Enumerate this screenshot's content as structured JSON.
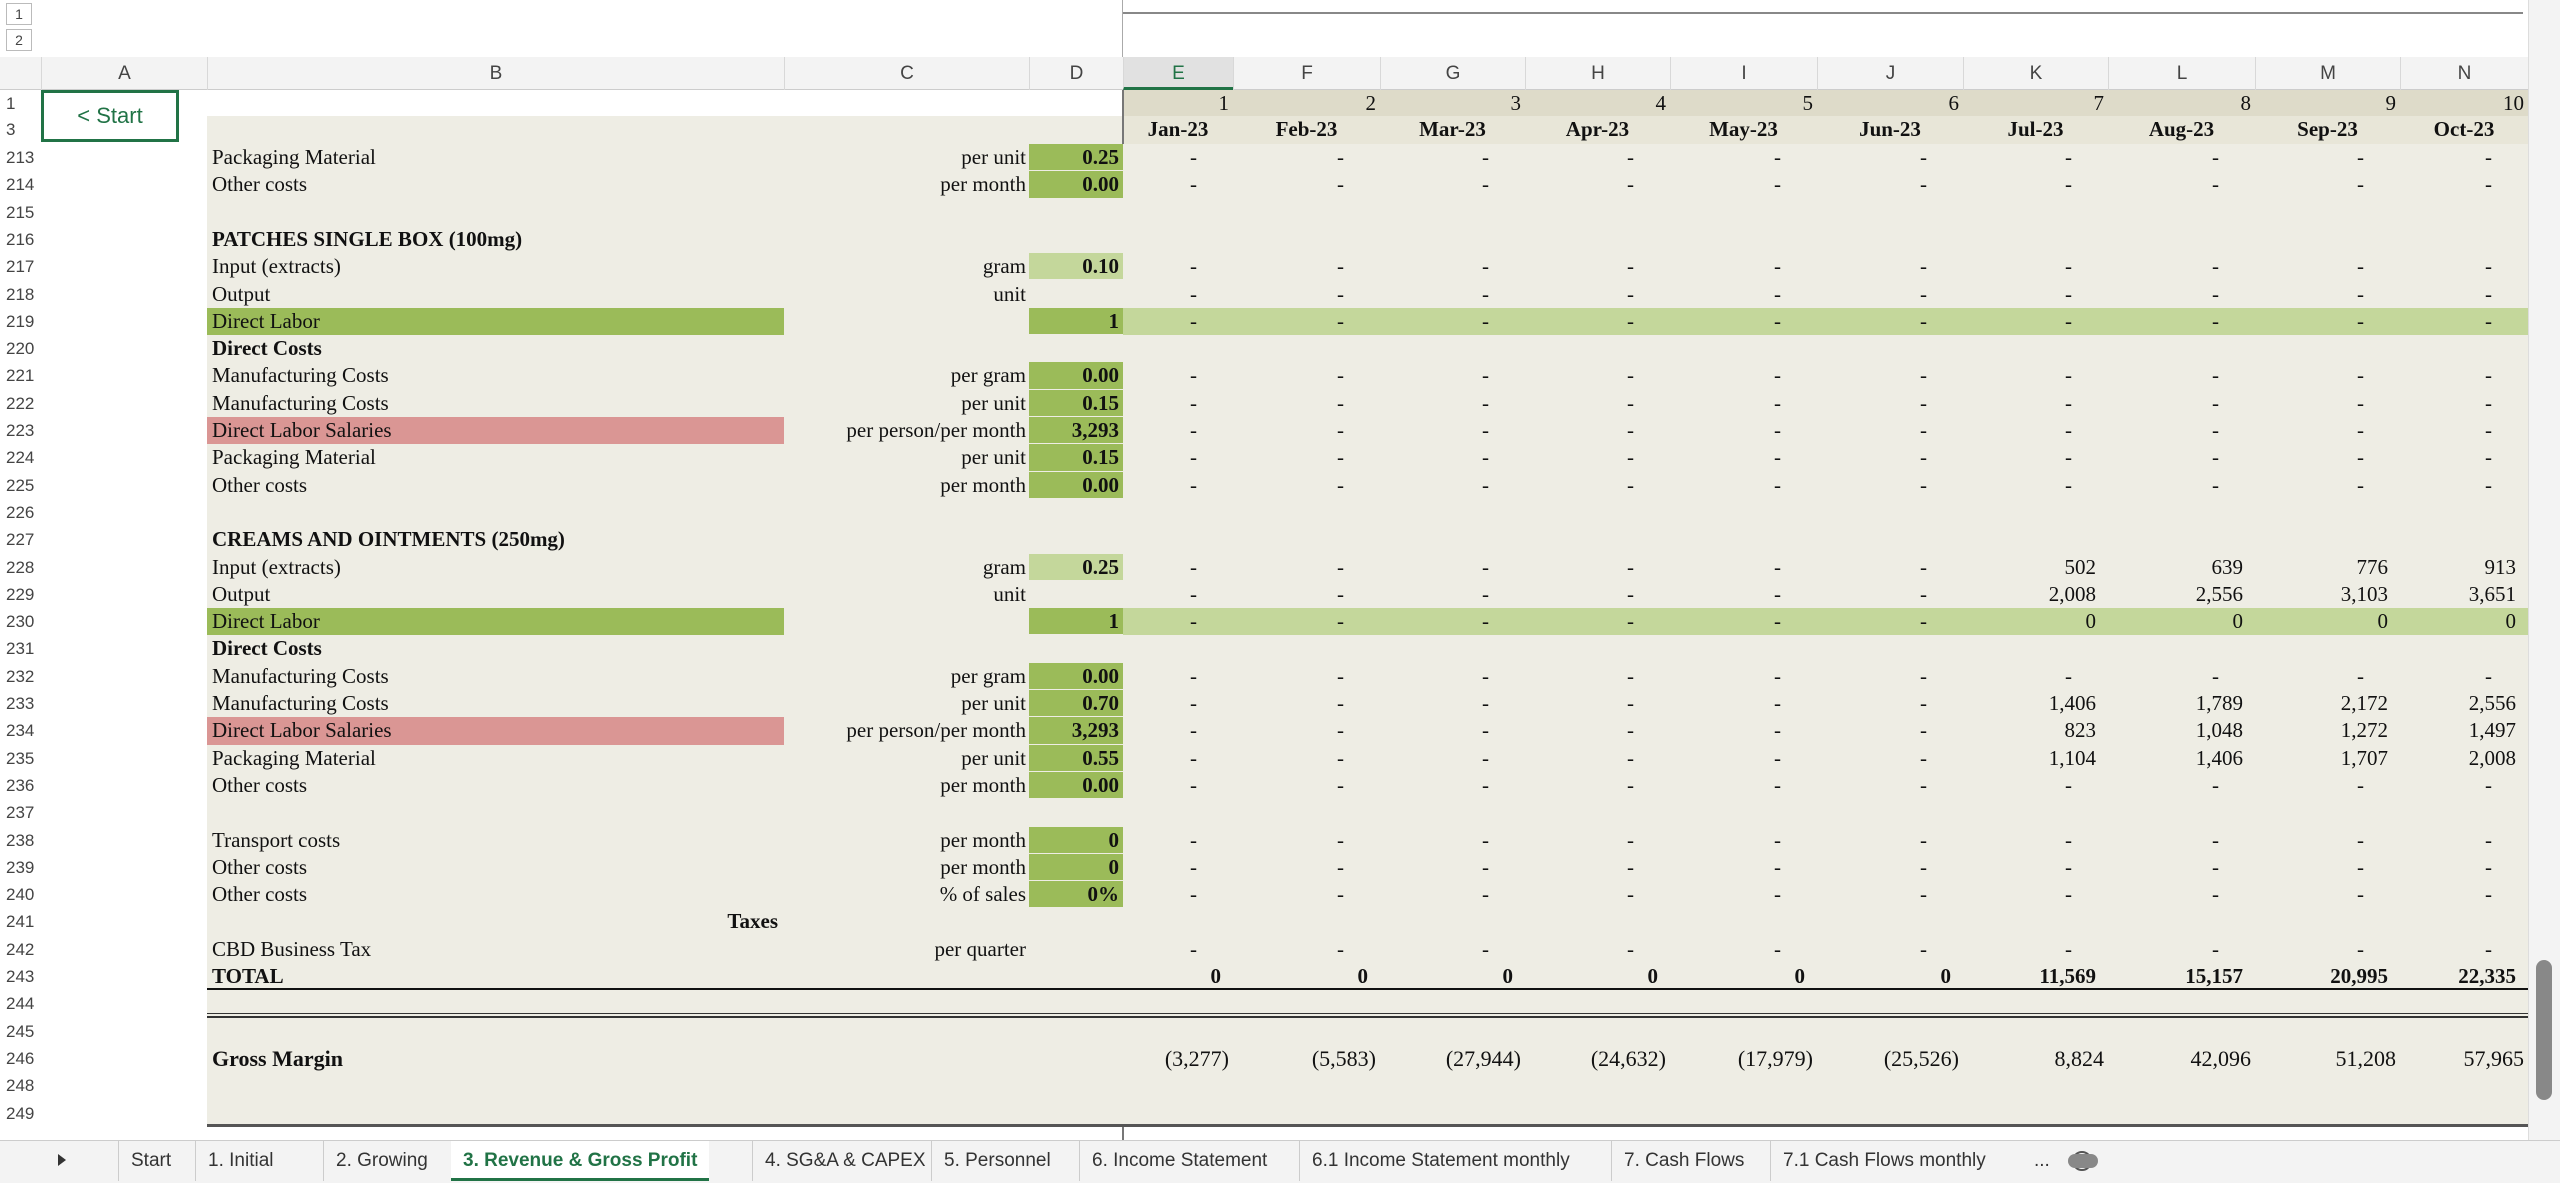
{
  "group_levels": [
    "1",
    "2"
  ],
  "column_headers": [
    "A",
    "B",
    "C",
    "D",
    "E",
    "F",
    "G",
    "H",
    "I",
    "J",
    "K",
    "L",
    "M",
    "N"
  ],
  "header_rows": [
    "1",
    "3"
  ],
  "start_button": "< Start",
  "period_numbers": [
    "1",
    "2",
    "3",
    "4",
    "5",
    "6",
    "7",
    "8",
    "9",
    "10"
  ],
  "months": [
    "Jan-23",
    "Feb-23",
    "Mar-23",
    "Apr-23",
    "May-23",
    "Jun-23",
    "Jul-23",
    "Aug-23",
    "Sep-23",
    "Oct-23"
  ],
  "rows": [
    {
      "row": "213",
      "label": "Packaging Material",
      "unit": "per unit",
      "input": "0.25",
      "values": [
        "-",
        "-",
        "-",
        "-",
        "-",
        "-",
        "-",
        "-",
        "-",
        "-"
      ]
    },
    {
      "row": "214",
      "label": "Other costs",
      "unit": "per month",
      "input": "0.00",
      "values": [
        "-",
        "-",
        "-",
        "-",
        "-",
        "-",
        "-",
        "-",
        "-",
        "-"
      ]
    },
    {
      "row": "215"
    },
    {
      "row": "216",
      "label": "PATCHES SINGLE BOX (100mg)",
      "style": "bold"
    },
    {
      "row": "217",
      "label": "Input (extracts)",
      "unit": "gram",
      "input": "0.10",
      "style": "light",
      "values": [
        "-",
        "-",
        "-",
        "-",
        "-",
        "-",
        "-",
        "-",
        "-",
        "-"
      ]
    },
    {
      "row": "218",
      "label": "Output",
      "unit": "unit",
      "values": [
        "-",
        "-",
        "-",
        "-",
        "-",
        "-",
        "-",
        "-",
        "-",
        "-"
      ]
    },
    {
      "row": "219",
      "label": "Direct Labor",
      "input": "1",
      "style": "labor",
      "values": [
        "-",
        "-",
        "-",
        "-",
        "-",
        "-",
        "-",
        "-",
        "-",
        "-"
      ]
    },
    {
      "row": "220",
      "label": "Direct Costs",
      "style": "bold"
    },
    {
      "row": "221",
      "label": "Manufacturing Costs",
      "unit": "per gram",
      "input": "0.00",
      "values": [
        "-",
        "-",
        "-",
        "-",
        "-",
        "-",
        "-",
        "-",
        "-",
        "-"
      ]
    },
    {
      "row": "222",
      "label": "Manufacturing Costs",
      "unit": "per unit",
      "input": "0.15",
      "values": [
        "-",
        "-",
        "-",
        "-",
        "-",
        "-",
        "-",
        "-",
        "-",
        "-"
      ]
    },
    {
      "row": "223",
      "label": "Direct Labor Salaries",
      "unit": "per person/per month",
      "input": "3,293",
      "style": "salary",
      "values": [
        "-",
        "-",
        "-",
        "-",
        "-",
        "-",
        "-",
        "-",
        "-",
        "-"
      ]
    },
    {
      "row": "224",
      "label": "Packaging Material",
      "unit": "per unit",
      "input": "0.15",
      "values": [
        "-",
        "-",
        "-",
        "-",
        "-",
        "-",
        "-",
        "-",
        "-",
        "-"
      ]
    },
    {
      "row": "225",
      "label": "Other costs",
      "unit": "per month",
      "input": "0.00",
      "values": [
        "-",
        "-",
        "-",
        "-",
        "-",
        "-",
        "-",
        "-",
        "-",
        "-"
      ]
    },
    {
      "row": "226"
    },
    {
      "row": "227",
      "label": "CREAMS AND OINTMENTS (250mg)",
      "style": "bold"
    },
    {
      "row": "228",
      "label": "Input (extracts)",
      "unit": "gram",
      "input": "0.25",
      "style": "light",
      "values": [
        "-",
        "-",
        "-",
        "-",
        "-",
        "-",
        "502",
        "639",
        "776",
        "913"
      ]
    },
    {
      "row": "229",
      "label": "Output",
      "unit": "unit",
      "values": [
        "-",
        "-",
        "-",
        "-",
        "-",
        "-",
        "2,008",
        "2,556",
        "3,103",
        "3,651"
      ]
    },
    {
      "row": "230",
      "label": "Direct Labor",
      "input": "1",
      "style": "labor",
      "values": [
        "-",
        "-",
        "-",
        "-",
        "-",
        "-",
        "0",
        "0",
        "0",
        "0"
      ]
    },
    {
      "row": "231",
      "label": "Direct Costs",
      "style": "bold"
    },
    {
      "row": "232",
      "label": "Manufacturing Costs",
      "unit": "per gram",
      "input": "0.00",
      "values": [
        "-",
        "-",
        "-",
        "-",
        "-",
        "-",
        "-",
        "-",
        "-",
        "-"
      ]
    },
    {
      "row": "233",
      "label": "Manufacturing Costs",
      "unit": "per unit",
      "input": "0.70",
      "values": [
        "-",
        "-",
        "-",
        "-",
        "-",
        "-",
        "1,406",
        "1,789",
        "2,172",
        "2,556"
      ]
    },
    {
      "row": "234",
      "label": "Direct Labor Salaries",
      "unit": "per person/per month",
      "input": "3,293",
      "style": "salary",
      "values": [
        "-",
        "-",
        "-",
        "-",
        "-",
        "-",
        "823",
        "1,048",
        "1,272",
        "1,497"
      ]
    },
    {
      "row": "235",
      "label": "Packaging Material",
      "unit": "per unit",
      "input": "0.55",
      "values": [
        "-",
        "-",
        "-",
        "-",
        "-",
        "-",
        "1,104",
        "1,406",
        "1,707",
        "2,008"
      ]
    },
    {
      "row": "236",
      "label": "Other costs",
      "unit": "per month",
      "input": "0.00",
      "values": [
        "-",
        "-",
        "-",
        "-",
        "-",
        "-",
        "-",
        "-",
        "-",
        "-"
      ]
    },
    {
      "row": "237"
    },
    {
      "row": "238",
      "label": "Transport costs",
      "unit": "per month",
      "input": "0",
      "values": [
        "-",
        "-",
        "-",
        "-",
        "-",
        "-",
        "-",
        "-",
        "-",
        "-"
      ]
    },
    {
      "row": "239",
      "label": "Other costs",
      "unit": "per month",
      "input": "0",
      "values": [
        "-",
        "-",
        "-",
        "-",
        "-",
        "-",
        "-",
        "-",
        "-",
        "-"
      ]
    },
    {
      "row": "240",
      "label": "Other costs",
      "unit": "% of sales",
      "input": "0%",
      "values": [
        "-",
        "-",
        "-",
        "-",
        "-",
        "-",
        "-",
        "-",
        "-",
        "-"
      ]
    },
    {
      "row": "241",
      "label": "Taxes",
      "style": "taxes"
    },
    {
      "row": "242",
      "label": "CBD Business Tax",
      "unit": "per quarter",
      "values": [
        "-",
        "-",
        "-",
        "-",
        "-",
        "-",
        "-",
        "-",
        "-",
        "-"
      ]
    },
    {
      "row": "243",
      "label": "TOTAL",
      "style": "total",
      "values": [
        "0",
        "0",
        "0",
        "0",
        "0",
        "0",
        "11,569",
        "15,157",
        "20,995",
        "22,335"
      ]
    },
    {
      "row": "244",
      "style": "double"
    },
    {
      "row": "245"
    },
    {
      "row": "246",
      "label": "Gross Margin",
      "style": "margin",
      "values": [
        "(3,277)",
        "(5,583)",
        "(27,944)",
        "(24,632)",
        "(17,979)",
        "(25,526)",
        "8,824",
        "42,096",
        "51,208",
        "57,965"
      ]
    },
    {
      "row": "248"
    },
    {
      "row": "249",
      "style": "end"
    }
  ],
  "tabs": [
    "Start",
    "1. Initial",
    "2. Growing",
    "3. Revenue & Gross Profit",
    "4. SG&A & CAPEX",
    "5. Personnel",
    "6. Income Statement",
    "6.1 Income Statement monthly",
    "7. Cash Flows",
    "7.1 Cash Flows monthly"
  ],
  "active_tab": 3,
  "more_tabs": "..."
}
